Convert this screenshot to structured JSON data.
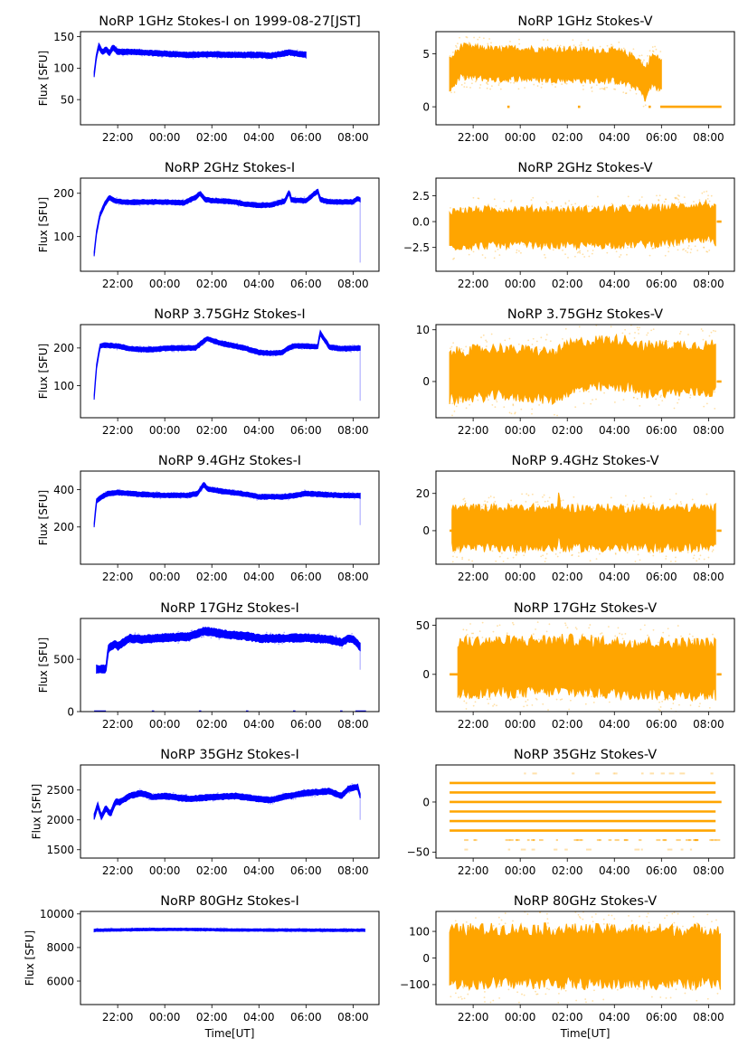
{
  "figure": {
    "colors": {
      "stokes_i": "#0000ff",
      "stokes_v": "#ffa500",
      "axes": "#000000"
    },
    "x_label": "Time[UT]",
    "y_label_i": "Flux [SFU]"
  },
  "chart_data": [
    {
      "type": "scatter",
      "title": "NoRP 1GHz Stokes-I on 1999-08-27[JST]",
      "xlabel": "",
      "ylabel": "Flux [SFU]",
      "x_unit": "hours since 20:00 UT",
      "xlim": [
        0.42,
        13.1
      ],
      "ylim": [
        10,
        158
      ],
      "x_ticks": [
        2,
        4,
        6,
        8,
        10,
        12
      ],
      "x_tick_labels": [
        "22:00",
        "00:00",
        "02:00",
        "04:00",
        "06:00",
        "08:00"
      ],
      "y_ticks": [
        50,
        100,
        150
      ],
      "y_tick_labels": [
        "50",
        "100",
        "150"
      ],
      "series": [
        {
          "name": "Stokes-I",
          "color": "#0000ff",
          "x": [
            1.0,
            1.1,
            1.2,
            1.35,
            1.5,
            1.65,
            1.8,
            2.0,
            2.5,
            3,
            4,
            5,
            6,
            7,
            8,
            8.5,
            9,
            9.3,
            9.6,
            10
          ],
          "y": [
            90,
            120,
            135,
            125,
            130,
            124,
            133,
            126,
            126,
            125,
            123,
            121,
            122,
            121,
            121,
            120,
            123,
            125,
            123,
            121
          ],
          "band": 4
        }
      ]
    },
    {
      "type": "scatter",
      "title": "NoRP 1GHz Stokes-V",
      "xlabel": "",
      "ylabel": "",
      "x_unit": "hours since 20:00 UT",
      "xlim": [
        0.42,
        13.1
      ],
      "ylim": [
        -1.7,
        7.1
      ],
      "x_ticks": [
        2,
        4,
        6,
        8,
        10,
        12
      ],
      "x_tick_labels": [
        "22:00",
        "00:00",
        "02:00",
        "04:00",
        "06:00",
        "08:00"
      ],
      "y_ticks": [
        0,
        5
      ],
      "y_tick_labels": [
        "0",
        "5"
      ],
      "series": [
        {
          "name": "Stokes-V",
          "color": "#ffa500",
          "x": [
            1.0,
            1.5,
            2,
            3,
            4,
            5,
            6,
            7,
            8,
            8.5,
            9,
            9.3,
            9.6,
            10
          ],
          "y": [
            3,
            4.3,
            4.2,
            4,
            4.1,
            4,
            4,
            3.9,
            3.9,
            3.6,
            3.2,
            2.2,
            3.5,
            3
          ],
          "band": 1.4
        }
      ],
      "zero_segments": [
        [
          3.45,
          3.55
        ],
        [
          6.45,
          6.55
        ],
        [
          9.45,
          9.55
        ],
        [
          9.95,
          12.55
        ]
      ]
    },
    {
      "type": "scatter",
      "title": "NoRP 2GHz Stokes-I",
      "xlabel": "",
      "ylabel": "Flux [SFU]",
      "x_unit": "hours since 20:00 UT",
      "xlim": [
        0.42,
        13.1
      ],
      "ylim": [
        20,
        235
      ],
      "x_ticks": [
        2,
        4,
        6,
        8,
        10,
        12
      ],
      "x_tick_labels": [
        "22:00",
        "00:00",
        "02:00",
        "04:00",
        "06:00",
        "08:00"
      ],
      "y_ticks": [
        100,
        200
      ],
      "y_tick_labels": [
        "100",
        "200"
      ],
      "series": [
        {
          "name": "Stokes-I",
          "color": "#0000ff",
          "x": [
            1.0,
            1.1,
            1.25,
            1.45,
            1.65,
            1.9,
            2.5,
            3,
            4,
            4.8,
            5.3,
            5.5,
            5.7,
            6,
            6.5,
            7,
            7.4,
            8,
            8.5,
            9.1,
            9.3,
            9.35,
            9.5,
            10,
            10.5,
            10.6,
            10.7,
            11,
            12,
            12.2,
            12.3
          ],
          "y": [
            60,
            110,
            150,
            175,
            190,
            182,
            179,
            180,
            180,
            178,
            190,
            200,
            186,
            183,
            182,
            180,
            175,
            172,
            173,
            182,
            205,
            186,
            184,
            183,
            205,
            186,
            184,
            180,
            180,
            188,
            185
          ],
          "band": 5
        }
      ]
    },
    {
      "type": "scatter",
      "title": "NoRP 2GHz Stokes-V",
      "xlabel": "",
      "ylabel": "",
      "x_unit": "hours since 20:00 UT",
      "xlim": [
        0.42,
        13.1
      ],
      "ylim": [
        -4.8,
        4.2
      ],
      "x_ticks": [
        2,
        4,
        6,
        8,
        10,
        12
      ],
      "x_tick_labels": [
        "22:00",
        "00:00",
        "02:00",
        "04:00",
        "06:00",
        "08:00"
      ],
      "y_ticks": [
        -2.5,
        0.0,
        2.5
      ],
      "y_tick_labels": [
        "−2.5",
        "0.0",
        "2.5"
      ],
      "series": [
        {
          "name": "Stokes-V",
          "color": "#ffa500",
          "x": [
            1.0,
            2,
            4,
            6,
            8,
            10,
            11,
            12,
            12.3
          ],
          "y": [
            -0.7,
            -0.6,
            -0.5,
            -0.6,
            -0.5,
            -0.4,
            -0.2,
            0,
            -0.5
          ],
          "band": 1.7
        }
      ],
      "zero_segments": [
        [
          12.35,
          12.55
        ]
      ]
    },
    {
      "type": "scatter",
      "title": "NoRP 3.75GHz Stokes-I",
      "xlabel": "",
      "ylabel": "Flux [SFU]",
      "x_unit": "hours since 20:00 UT",
      "xlim": [
        0.42,
        13.1
      ],
      "ylim": [
        15,
        262
      ],
      "x_ticks": [
        2,
        4,
        6,
        8,
        10,
        12
      ],
      "x_tick_labels": [
        "22:00",
        "00:00",
        "02:00",
        "04:00",
        "06:00",
        "08:00"
      ],
      "y_ticks": [
        100,
        200
      ],
      "y_tick_labels": [
        "100",
        "200"
      ],
      "series": [
        {
          "name": "Stokes-I",
          "color": "#0000ff",
          "x": [
            1.0,
            1.1,
            1.25,
            1.4,
            2,
            2.5,
            3,
            3.5,
            4,
            5,
            5.3,
            5.5,
            5.8,
            6.3,
            7,
            7.5,
            8,
            8.5,
            9,
            9.2,
            9.5,
            10,
            10.5,
            10.6,
            11,
            11.5,
            12,
            12.3
          ],
          "y": [
            70,
            150,
            205,
            208,
            205,
            198,
            196,
            196,
            199,
            200,
            200,
            210,
            225,
            214,
            205,
            198,
            188,
            186,
            188,
            198,
            206,
            205,
            203,
            240,
            202,
            198,
            199,
            200
          ],
          "band": 6
        }
      ]
    },
    {
      "type": "scatter",
      "title": "NoRP 3.75GHz Stokes-V",
      "xlabel": "",
      "ylabel": "",
      "x_unit": "hours since 20:00 UT",
      "xlim": [
        0.42,
        13.1
      ],
      "ylim": [
        -7,
        11
      ],
      "x_ticks": [
        2,
        4,
        6,
        8,
        10,
        12
      ],
      "x_tick_labels": [
        "22:00",
        "00:00",
        "02:00",
        "04:00",
        "06:00",
        "08:00"
      ],
      "y_ticks": [
        0,
        10
      ],
      "y_tick_labels": [
        "0",
        "10"
      ],
      "series": [
        {
          "name": "Stokes-V",
          "color": "#ffa500",
          "x": [
            1.0,
            2,
            3.4,
            3.5,
            4.5,
            5.5,
            6,
            6.5,
            7.5,
            8.5,
            9.4,
            9.5,
            10.5,
            11.5,
            12.3
          ],
          "y": [
            1,
            1.5,
            2,
            1.5,
            1.5,
            1,
            2.5,
            3,
            3.5,
            3.5,
            2,
            2.5,
            2.5,
            2.5,
            2.5
          ],
          "band": 4.5
        }
      ],
      "zero_segments": [
        [
          12.35,
          12.55
        ]
      ]
    },
    {
      "type": "scatter",
      "title": "NoRP 9.4GHz Stokes-I",
      "xlabel": "",
      "ylabel": "Flux [SFU]",
      "x_unit": "hours since 20:00 UT",
      "xlim": [
        0.42,
        13.1
      ],
      "ylim": [
        0,
        500
      ],
      "x_ticks": [
        2,
        4,
        6,
        8,
        10,
        12
      ],
      "x_tick_labels": [
        "22:00",
        "00:00",
        "02:00",
        "04:00",
        "06:00",
        "08:00"
      ],
      "y_ticks": [
        200,
        400
      ],
      "y_tick_labels": [
        "200",
        "400"
      ],
      "series": [
        {
          "name": "Stokes-I",
          "color": "#0000ff",
          "x": [
            1.0,
            1.1,
            1.3,
            1.6,
            2,
            3,
            4,
            5,
            5.4,
            5.65,
            5.8,
            6.5,
            7.5,
            8,
            9,
            9.5,
            10,
            11,
            12,
            12.3
          ],
          "y": [
            210,
            340,
            360,
            380,
            385,
            375,
            370,
            370,
            380,
            430,
            405,
            390,
            375,
            362,
            362,
            368,
            380,
            372,
            368,
            368
          ],
          "band": 12
        }
      ]
    },
    {
      "type": "scatter",
      "title": "NoRP 9.4GHz Stokes-V",
      "xlabel": "",
      "ylabel": "",
      "x_unit": "hours since 20:00 UT",
      "xlim": [
        0.42,
        13.1
      ],
      "ylim": [
        -18,
        32
      ],
      "x_ticks": [
        2,
        4,
        6,
        8,
        10,
        12
      ],
      "x_tick_labels": [
        "22:00",
        "00:00",
        "02:00",
        "04:00",
        "06:00",
        "08:00"
      ],
      "y_ticks": [
        0,
        20
      ],
      "y_tick_labels": [
        "0",
        "20"
      ],
      "series": [
        {
          "name": "Stokes-V",
          "color": "#ffa500",
          "x": [
            1.1,
            4,
            5.6,
            5.65,
            5.7,
            8,
            12.3
          ],
          "y": [
            1.5,
            1.5,
            1.5,
            12,
            1.5,
            1.5,
            1.5
          ],
          "band": 10.5
        }
      ],
      "zero_segments": [
        [
          1.0,
          1.1
        ],
        [
          12.35,
          12.55
        ]
      ]
    },
    {
      "type": "scatter",
      "title": "NoRP 17GHz Stokes-I",
      "xlabel": "",
      "ylabel": "Flux [SFU]",
      "x_unit": "hours since 20:00 UT",
      "xlim": [
        0.42,
        13.1
      ],
      "ylim": [
        0,
        890
      ],
      "x_ticks": [
        2,
        4,
        6,
        8,
        10,
        12
      ],
      "x_tick_labels": [
        "22:00",
        "00:00",
        "02:00",
        "04:00",
        "06:00",
        "08:00"
      ],
      "y_ticks": [
        0,
        500
      ],
      "y_tick_labels": [
        "0",
        "500"
      ],
      "series": [
        {
          "name": "Stokes-I",
          "color": "#0000ff",
          "x": [
            1.1,
            1.5,
            1.6,
            1.9,
            2,
            2.5,
            3,
            4,
            5,
            5.7,
            6.5,
            7.5,
            8,
            9,
            10,
            11,
            11.5,
            11.8,
            12,
            12.3
          ],
          "y": [
            405,
            405,
            600,
            650,
            620,
            700,
            690,
            705,
            715,
            770,
            740,
            720,
            700,
            700,
            705,
            690,
            660,
            700,
            690,
            620
          ],
          "band": 35
        }
      ],
      "zero_segments": [
        [
          1.0,
          1.5
        ],
        [
          3.45,
          3.55
        ],
        [
          5.45,
          5.55
        ],
        [
          7.45,
          7.55
        ],
        [
          9.45,
          9.55
        ],
        [
          11.45,
          11.55
        ],
        [
          12.1,
          12.55
        ]
      ]
    },
    {
      "type": "scatter",
      "title": "NoRP 17GHz Stokes-V",
      "xlabel": "",
      "ylabel": "",
      "x_unit": "hours since 20:00 UT",
      "xlim": [
        0.42,
        13.1
      ],
      "ylim": [
        -38,
        57
      ],
      "x_ticks": [
        2,
        4,
        6,
        8,
        10,
        12
      ],
      "x_tick_labels": [
        "22:00",
        "00:00",
        "02:00",
        "04:00",
        "06:00",
        "08:00"
      ],
      "y_ticks": [
        0,
        50
      ],
      "y_tick_labels": [
        "0",
        "50"
      ],
      "series": [
        {
          "name": "Stokes-V",
          "color": "#ffa500",
          "x": [
            1.35,
            4,
            6,
            8,
            10,
            12.3
          ],
          "y": [
            7,
            8,
            9,
            7,
            6,
            5
          ],
          "band": 26
        }
      ],
      "zero_segments": [
        [
          1.0,
          1.35
        ],
        [
          12.35,
          12.55
        ]
      ]
    },
    {
      "type": "scatter",
      "title": "NoRP 35GHz Stokes-I",
      "xlabel": "",
      "ylabel": "Flux [SFU]",
      "x_unit": "hours since 20:00 UT",
      "xlim": [
        0.42,
        13.1
      ],
      "ylim": [
        1360,
        2920
      ],
      "x_ticks": [
        2,
        4,
        6,
        8,
        10,
        12
      ],
      "x_tick_labels": [
        "22:00",
        "00:00",
        "02:00",
        "04:00",
        "06:00",
        "08:00"
      ],
      "y_ticks": [
        1500,
        2000,
        2500
      ],
      "y_tick_labels": [
        "1500",
        "2000",
        "2500"
      ],
      "series": [
        {
          "name": "Stokes-I",
          "color": "#0000ff",
          "x": [
            1.0,
            1.15,
            1.3,
            1.5,
            1.7,
            1.9,
            2.1,
            2.5,
            3,
            3.5,
            4,
            5,
            6,
            7,
            8,
            8.5,
            9,
            10,
            11,
            11.5,
            11.8,
            12.2,
            12.3
          ],
          "y": [
            2050,
            2250,
            2050,
            2200,
            2100,
            2300,
            2300,
            2400,
            2450,
            2380,
            2400,
            2350,
            2380,
            2400,
            2350,
            2330,
            2380,
            2450,
            2480,
            2400,
            2520,
            2550,
            2400
          ],
          "band": 45
        }
      ]
    },
    {
      "type": "scatter",
      "title": "NoRP 35GHz Stokes-V",
      "xlabel": "",
      "ylabel": "",
      "x_unit": "hours since 20:00 UT",
      "xlim": [
        0.42,
        13.1
      ],
      "ylim": [
        -56,
        37
      ],
      "x_ticks": [
        2,
        4,
        6,
        8,
        10,
        12
      ],
      "x_tick_labels": [
        "22:00",
        "00:00",
        "02:00",
        "04:00",
        "06:00",
        "08:00"
      ],
      "y_ticks": [
        -50,
        0
      ],
      "y_tick_labels": [
        "−50",
        "0"
      ],
      "levels": [
        28.5,
        19,
        9.5,
        0,
        -9.5,
        -19,
        -28.5,
        -38,
        -47.5
      ],
      "level_weights": [
        0.2,
        1,
        1,
        1,
        1,
        1,
        1,
        0.6,
        0.2
      ],
      "series": [
        {
          "name": "Stokes-V",
          "color": "#ffa500",
          "x": [
            1.0,
            12.3
          ],
          "y": [
            0,
            0
          ]
        }
      ]
    },
    {
      "type": "scatter",
      "title": "NoRP 80GHz Stokes-I",
      "xlabel": "Time[UT]",
      "ylabel": "Flux [SFU]",
      "x_unit": "hours since 20:00 UT",
      "xlim": [
        0.42,
        13.1
      ],
      "ylim": [
        4600,
        10150
      ],
      "x_ticks": [
        2,
        4,
        6,
        8,
        10,
        12
      ],
      "x_tick_labels": [
        "22:00",
        "00:00",
        "02:00",
        "04:00",
        "06:00",
        "08:00"
      ],
      "y_ticks": [
        6000,
        8000,
        10000
      ],
      "y_tick_labels": [
        "6000",
        "8000",
        "10000"
      ],
      "series": [
        {
          "name": "Stokes-I",
          "color": "#0000ff",
          "x": [
            1.0,
            3,
            5,
            7,
            9,
            11,
            12.5
          ],
          "y": [
            9030,
            9070,
            9080,
            9040,
            9040,
            9030,
            9030
          ],
          "band": 70
        }
      ]
    },
    {
      "type": "scatter",
      "title": "NoRP 80GHz Stokes-V",
      "xlabel": "Time[UT]",
      "ylabel": "",
      "x_unit": "hours since 20:00 UT",
      "xlim": [
        0.42,
        13.1
      ],
      "ylim": [
        -175,
        175
      ],
      "x_ticks": [
        2,
        4,
        6,
        8,
        10,
        12
      ],
      "x_tick_labels": [
        "22:00",
        "00:00",
        "02:00",
        "04:00",
        "06:00",
        "08:00"
      ],
      "y_ticks": [
        -100,
        0,
        100
      ],
      "y_tick_labels": [
        "−100",
        "0",
        "100"
      ],
      "series": [
        {
          "name": "Stokes-V",
          "color": "#ffa500",
          "x": [
            1.0,
            4,
            7,
            10,
            12.5
          ],
          "y": [
            5,
            8,
            5,
            5,
            5
          ],
          "band": 100
        }
      ]
    }
  ]
}
